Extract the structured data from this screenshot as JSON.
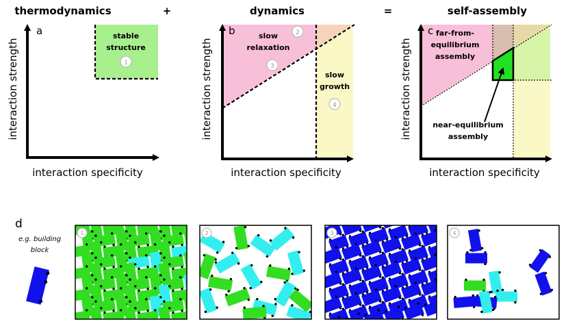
{
  "header": {
    "thermo": "thermodynamics",
    "plus": "+",
    "dyn": "dynamics",
    "equals": "=",
    "self": "self-assembly"
  },
  "axes": {
    "y_label": "interaction strength",
    "x_label": "interaction specificity"
  },
  "panel_letters": {
    "a": "a",
    "b": "b",
    "c": "c",
    "d": "d"
  },
  "panel_a": {
    "region_line1": "stable",
    "region_line2": "structure",
    "marker": "1"
  },
  "panel_b": {
    "slow_relax_1": "slow",
    "slow_relax_2": "relaxation",
    "slow_growth_1": "slow",
    "slow_growth_2": "growth",
    "markers": [
      "2",
      "3",
      "4"
    ]
  },
  "panel_c": {
    "far_1": "far-from-",
    "far_2": "equilibrium",
    "far_3": "assembly",
    "near_1": "near-equilibrium",
    "near_2": "assembly"
  },
  "panel_d": {
    "eg_1": "e.g. building",
    "eg_2": "block",
    "tiles": [
      "1",
      "2",
      "3",
      "4"
    ]
  },
  "colors": {
    "green_region": "#a8f08e",
    "pink_region": "#f8bfd9",
    "yellow_region": "#fbf8c8",
    "orange_region": "#f7d3bb",
    "brown_region": "#d8beb0",
    "bright_green": "#22e022",
    "block_green": "#33dd22",
    "block_cyan": "#33eeee",
    "block_blue": "#1111ee"
  }
}
